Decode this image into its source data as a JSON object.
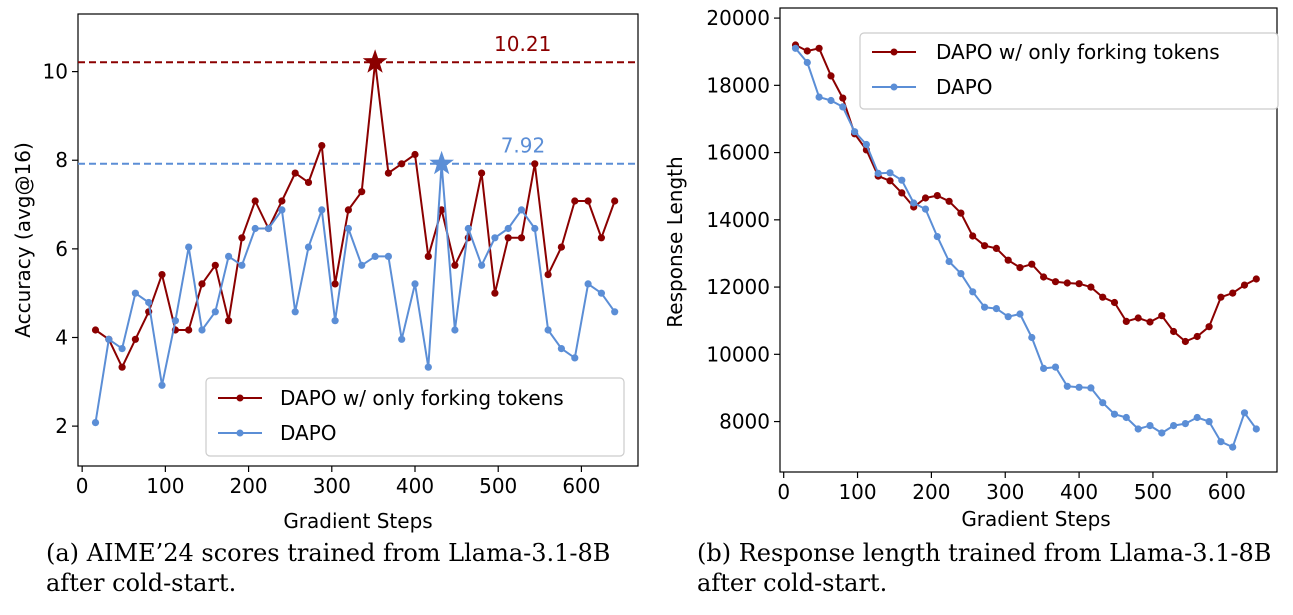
{
  "captions": {
    "a_label": "(a)",
    "a_text": "AIME’24 scores trained from Llama-3.1-8B after cold-start.",
    "b_label": "(b)",
    "b_text": "Response length trained from Llama-3.1-8B after cold-start."
  },
  "chart_data": [
    {
      "type": "line",
      "xlabel": "Gradient Steps",
      "ylabel": "Accuracy (avg@16)",
      "xlim": [
        -5,
        668
      ],
      "ylim": [
        1.1,
        11.3
      ],
      "xticks": [
        0,
        100,
        200,
        300,
        400,
        500,
        600
      ],
      "yticks": [
        2,
        4,
        6,
        8,
        10
      ],
      "grid": false,
      "legend": "lower-right",
      "series": [
        {
          "name": "DAPO w/ only forking tokens",
          "color": "#8b0000",
          "x": [
            16,
            32,
            48,
            64,
            80,
            96,
            112,
            128,
            144,
            160,
            176,
            192,
            208,
            224,
            240,
            256,
            272,
            288,
            304,
            320,
            336,
            352,
            368,
            384,
            400,
            416,
            432,
            448,
            464,
            480,
            496,
            512,
            528,
            544,
            560,
            576,
            592,
            608,
            624,
            640
          ],
          "y": [
            4.17,
            3.96,
            3.33,
            3.96,
            4.58,
            5.42,
            4.17,
            4.17,
            5.21,
            5.63,
            4.38,
            6.25,
            7.08,
            6.46,
            7.08,
            7.71,
            7.5,
            8.33,
            5.21,
            6.88,
            7.29,
            10.21,
            7.71,
            7.92,
            8.13,
            5.83,
            6.88,
            5.63,
            6.25,
            7.71,
            5.0,
            6.25,
            6.25,
            7.92,
            5.42,
            6.04,
            7.08,
            7.08,
            6.25,
            7.08
          ]
        },
        {
          "name": "DAPO",
          "color": "#5b8ed6",
          "x": [
            16,
            32,
            48,
            64,
            80,
            96,
            112,
            128,
            144,
            160,
            176,
            192,
            208,
            224,
            240,
            256,
            272,
            288,
            304,
            320,
            336,
            352,
            368,
            384,
            400,
            416,
            432,
            448,
            464,
            480,
            496,
            512,
            528,
            544,
            560,
            576,
            592,
            608,
            624,
            640
          ],
          "y": [
            2.08,
            3.96,
            3.75,
            5.0,
            4.79,
            2.92,
            4.38,
            6.04,
            4.17,
            4.58,
            5.83,
            5.63,
            6.46,
            6.46,
            6.88,
            4.58,
            6.04,
            6.88,
            4.38,
            6.46,
            5.63,
            5.83,
            5.83,
            3.96,
            5.21,
            3.33,
            7.92,
            4.17,
            6.46,
            5.63,
            6.25,
            6.46,
            6.88,
            6.46,
            4.17,
            3.75,
            3.54,
            5.21,
            5.0,
            4.58
          ]
        }
      ],
      "annotations": [
        {
          "text": "10.21",
          "x": 352,
          "y": 10.21,
          "color": "#8b0000",
          "label_x": 495,
          "label_y": 10.62
        },
        {
          "text": "7.92",
          "x": 432,
          "y": 7.92,
          "color": "#5b8ed6",
          "label_x": 503,
          "label_y": 8.33
        }
      ]
    },
    {
      "type": "line",
      "xlabel": "Gradient Steps",
      "ylabel": "Response Length",
      "xlim": [
        -5,
        668
      ],
      "ylim": [
        6500,
        20300
      ],
      "xticks": [
        0,
        100,
        200,
        300,
        400,
        500,
        600
      ],
      "yticks": [
        8000,
        10000,
        12000,
        14000,
        16000,
        18000,
        20000
      ],
      "grid": false,
      "legend": "upper-right",
      "series": [
        {
          "name": "DAPO w/ only forking tokens",
          "color": "#8b0000",
          "x": [
            16,
            32,
            48,
            64,
            80,
            96,
            112,
            128,
            144,
            160,
            176,
            192,
            208,
            224,
            240,
            256,
            272,
            288,
            304,
            320,
            336,
            352,
            368,
            384,
            400,
            416,
            432,
            448,
            464,
            480,
            496,
            512,
            528,
            544,
            560,
            576,
            592,
            608,
            624,
            640
          ],
          "y": [
            19200,
            19020,
            19100,
            18280,
            17620,
            16560,
            16080,
            15300,
            15160,
            14800,
            14380,
            14650,
            14720,
            14550,
            14200,
            13520,
            13230,
            13150,
            12800,
            12580,
            12680,
            12300,
            12160,
            12120,
            12100,
            12000,
            11700,
            11540,
            10980,
            11080,
            10960,
            11150,
            10680,
            10380,
            10530,
            10820,
            11700,
            11820,
            12060,
            12240
          ]
        },
        {
          "name": "DAPO",
          "color": "#5b8ed6",
          "x": [
            16,
            32,
            48,
            64,
            80,
            96,
            112,
            128,
            144,
            160,
            176,
            192,
            208,
            224,
            240,
            256,
            272,
            288,
            304,
            320,
            336,
            352,
            368,
            384,
            400,
            416,
            432,
            448,
            464,
            480,
            496,
            512,
            528,
            544,
            560,
            576,
            592,
            608,
            624,
            640
          ],
          "y": [
            19100,
            18680,
            17650,
            17550,
            17360,
            16620,
            16240,
            15380,
            15400,
            15180,
            14500,
            14320,
            13500,
            12760,
            12400,
            11860,
            11400,
            11360,
            11120,
            11200,
            10500,
            9580,
            9620,
            9050,
            9020,
            9000,
            8560,
            8220,
            8120,
            7780,
            7880,
            7660,
            7880,
            7940,
            8120,
            8000,
            7400,
            7240,
            8260,
            7780
          ]
        }
      ],
      "annotations": []
    }
  ]
}
